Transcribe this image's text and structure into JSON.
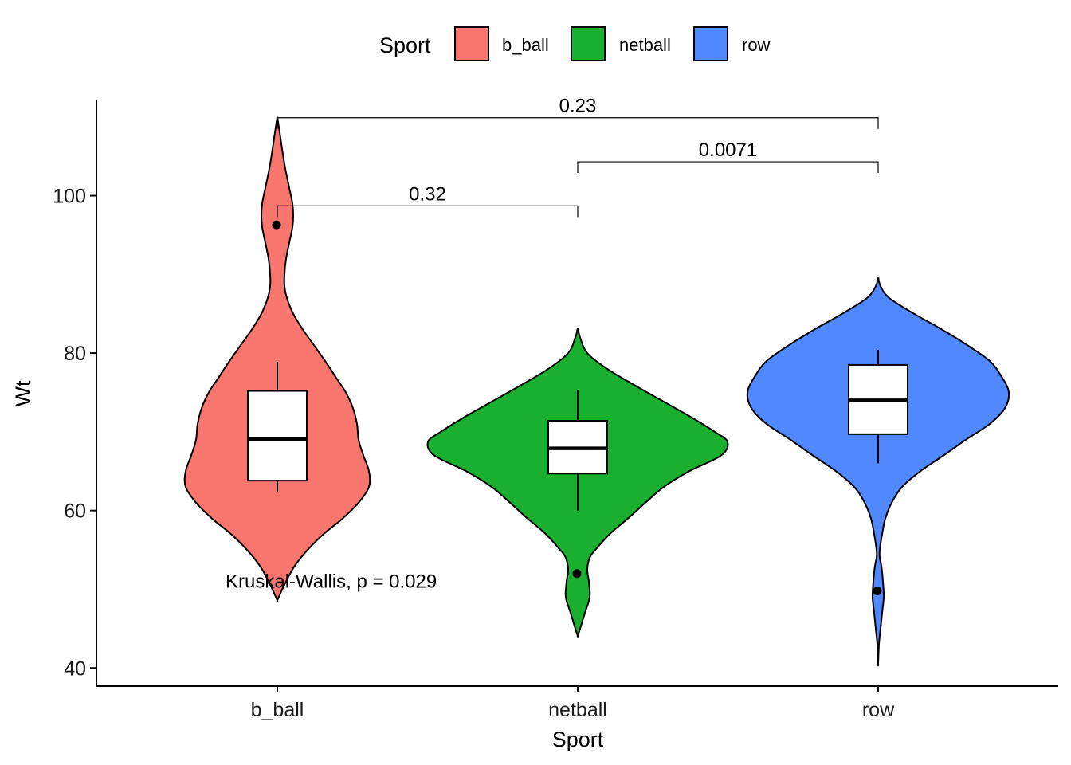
{
  "chart_data": {
    "type": "violin",
    "xlabel": "Sport",
    "ylabel": "Wt",
    "ylim": [
      37.7,
      112.1
    ],
    "yticks": [
      40,
      60,
      80,
      100
    ],
    "categories": [
      "b_ball",
      "netball",
      "row"
    ],
    "legend": {
      "title": "Sport",
      "position": "top",
      "entries": [
        "b_ball",
        "netball",
        "row"
      ]
    },
    "colors": {
      "b_ball": "#F8766D",
      "netball": "#1AAF2E",
      "row": "#5088FF",
      "outline": "#000000"
    },
    "series": [
      {
        "name": "b_ball",
        "violin_range": [
          48.6,
          110.0
        ],
        "box": {
          "whisker_low": 62.4,
          "q1": 63.8,
          "median": 69.1,
          "q3": 75.2,
          "whisker_high": 78.9
        },
        "outliers": [
          96.3
        ]
      },
      {
        "name": "netball",
        "violin_range": [
          44.1,
          83.2
        ],
        "box": {
          "whisker_low": 60.0,
          "q1": 64.7,
          "median": 67.9,
          "q3": 71.4,
          "whisker_high": 75.3
        },
        "outliers": [
          52.0
        ]
      },
      {
        "name": "row",
        "violin_range": [
          40.6,
          89.7
        ],
        "box": {
          "whisker_low": 66.0,
          "q1": 69.7,
          "median": 74.0,
          "q3": 78.5,
          "whisker_high": 80.4
        },
        "outliers": [
          49.8
        ]
      }
    ],
    "comparisons": [
      {
        "groups": [
          "b_ball",
          "netball"
        ],
        "label": "0.32",
        "y": 98.7
      },
      {
        "groups": [
          "netball",
          "row"
        ],
        "label": "0.0071",
        "y": 104.3
      },
      {
        "groups": [
          "b_ball",
          "row"
        ],
        "label": "0.23",
        "y": 109.9
      }
    ],
    "global_test": {
      "label": "Kruskal-Wallis, p = 0.029",
      "y": 51.1
    }
  }
}
